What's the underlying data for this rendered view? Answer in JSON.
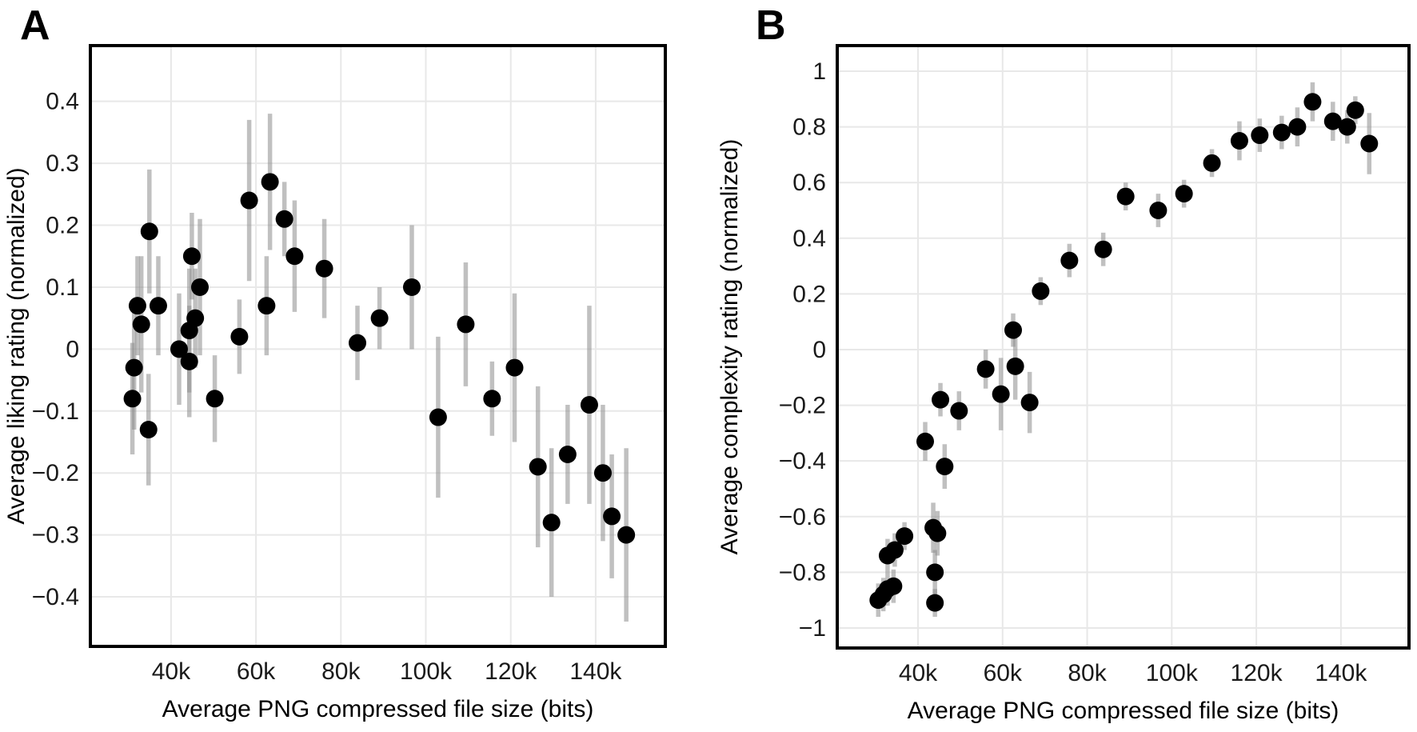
{
  "page": {
    "background": "#ffffff",
    "figure_type": "two-panel scatter plot with error bars"
  },
  "colors": {
    "point": "#000000",
    "error_bar": "#8c8c8c",
    "grid": "#e8e8e8",
    "frame": "#000000",
    "tick_text": "#1a1a1a",
    "title_text": "#000000"
  },
  "chart_data": [
    {
      "type": "scatter",
      "panel_label": "A",
      "xlabel": "Average PNG compressed file size (bits)",
      "ylabel": "Average liking rating (normalized)",
      "grid": true,
      "legend": false,
      "error_bars": true,
      "xlim": [
        21000,
        156400
      ],
      "ylim": [
        -0.48,
        0.49
      ],
      "x_ticks": {
        "values": [
          40000,
          60000,
          80000,
          100000,
          120000,
          140000
        ],
        "labels": [
          "40k",
          "60k",
          "80k",
          "100k",
          "120k",
          "140k"
        ]
      },
      "y_ticks": {
        "values": [
          0.4,
          0.3,
          0.2,
          0.1,
          0,
          -0.1,
          -0.2,
          -0.3,
          -0.4
        ],
        "labels": [
          "0.4",
          "0.3",
          "0.2",
          "0.1",
          "0",
          "−0.1",
          "−0.2",
          "−0.3",
          "−0.4"
        ]
      },
      "points": [
        {
          "x": 30900,
          "y": -0.08,
          "e": 0.09
        },
        {
          "x": 31300,
          "y": -0.03,
          "e": 0.1
        },
        {
          "x": 32100,
          "y": 0.07,
          "e": 0.08
        },
        {
          "x": 33000,
          "y": 0.04,
          "e": 0.11
        },
        {
          "x": 34900,
          "y": 0.19,
          "e": 0.1
        },
        {
          "x": 34700,
          "y": -0.13,
          "e": 0.09
        },
        {
          "x": 37000,
          "y": 0.07,
          "e": 0.08
        },
        {
          "x": 41900,
          "y": 0.0,
          "e": 0.09
        },
        {
          "x": 44300,
          "y": 0.03,
          "e": 0.1
        },
        {
          "x": 44300,
          "y": -0.02,
          "e": 0.09
        },
        {
          "x": 44900,
          "y": 0.15,
          "e": 0.07
        },
        {
          "x": 45700,
          "y": 0.05,
          "e": 0.08
        },
        {
          "x": 46800,
          "y": 0.1,
          "e": 0.11
        },
        {
          "x": 50300,
          "y": -0.08,
          "e": 0.07
        },
        {
          "x": 56100,
          "y": 0.02,
          "e": 0.06
        },
        {
          "x": 58400,
          "y": 0.24,
          "e": 0.13
        },
        {
          "x": 62500,
          "y": 0.07,
          "e": 0.08
        },
        {
          "x": 63300,
          "y": 0.27,
          "e": 0.11
        },
        {
          "x": 66700,
          "y": 0.21,
          "e": 0.06
        },
        {
          "x": 69100,
          "y": 0.15,
          "e": 0.09
        },
        {
          "x": 76100,
          "y": 0.13,
          "e": 0.08
        },
        {
          "x": 83900,
          "y": 0.01,
          "e": 0.06
        },
        {
          "x": 89100,
          "y": 0.05,
          "e": 0.05
        },
        {
          "x": 96700,
          "y": 0.1,
          "e": 0.1
        },
        {
          "x": 102900,
          "y": -0.11,
          "e": 0.13
        },
        {
          "x": 109400,
          "y": 0.04,
          "e": 0.1
        },
        {
          "x": 115600,
          "y": -0.08,
          "e": 0.06
        },
        {
          "x": 120900,
          "y": -0.03,
          "e": 0.12
        },
        {
          "x": 126400,
          "y": -0.19,
          "e": 0.13
        },
        {
          "x": 129600,
          "y": -0.28,
          "e": 0.12
        },
        {
          "x": 133400,
          "y": -0.17,
          "e": 0.08
        },
        {
          "x": 138500,
          "y": -0.09,
          "e": 0.16
        },
        {
          "x": 141700,
          "y": -0.2,
          "e": 0.11
        },
        {
          "x": 143800,
          "y": -0.27,
          "e": 0.1
        },
        {
          "x": 147200,
          "y": -0.3,
          "e": 0.14
        }
      ]
    },
    {
      "type": "scatter",
      "panel_label": "B",
      "xlabel": "Average PNG compressed file size (bits)",
      "ylabel": "Average complexity rating (normalized)",
      "grid": true,
      "legend": false,
      "error_bars": true,
      "xlim": [
        20900,
        156100
      ],
      "ylim": [
        -1.072,
        1.092
      ],
      "x_ticks": {
        "values": [
          40000,
          60000,
          80000,
          100000,
          120000,
          140000
        ],
        "labels": [
          "40k",
          "60k",
          "80k",
          "100k",
          "120k",
          "140k"
        ]
      },
      "y_ticks": {
        "values": [
          1,
          0.8,
          0.6,
          0.4,
          0.2,
          0,
          -0.2,
          -0.4,
          -0.6,
          -0.8,
          -1
        ],
        "labels": [
          "1",
          "0.8",
          "0.6",
          "0.4",
          "0.2",
          "0",
          "−0.2",
          "−0.4",
          "−0.6",
          "−0.8",
          "−1"
        ]
      },
      "points": [
        {
          "x": 30600,
          "y": -0.9,
          "e": 0.06
        },
        {
          "x": 31800,
          "y": -0.88,
          "e": 0.06
        },
        {
          "x": 32800,
          "y": -0.86,
          "e": 0.06
        },
        {
          "x": 34200,
          "y": -0.85,
          "e": 0.06
        },
        {
          "x": 32800,
          "y": -0.74,
          "e": 0.06
        },
        {
          "x": 34500,
          "y": -0.72,
          "e": 0.06
        },
        {
          "x": 36800,
          "y": -0.67,
          "e": 0.05
        },
        {
          "x": 41700,
          "y": -0.33,
          "e": 0.07
        },
        {
          "x": 43600,
          "y": -0.64,
          "e": 0.09
        },
        {
          "x": 44600,
          "y": -0.66,
          "e": 0.08
        },
        {
          "x": 44000,
          "y": -0.8,
          "e": 0.08
        },
        {
          "x": 44000,
          "y": -0.91,
          "e": 0.05
        },
        {
          "x": 45300,
          "y": -0.18,
          "e": 0.06
        },
        {
          "x": 46300,
          "y": -0.42,
          "e": 0.08
        },
        {
          "x": 49700,
          "y": -0.22,
          "e": 0.07
        },
        {
          "x": 56000,
          "y": -0.07,
          "e": 0.07
        },
        {
          "x": 59600,
          "y": -0.16,
          "e": 0.13
        },
        {
          "x": 62500,
          "y": 0.07,
          "e": 0.06
        },
        {
          "x": 63000,
          "y": -0.06,
          "e": 0.12
        },
        {
          "x": 66400,
          "y": -0.19,
          "e": 0.11
        },
        {
          "x": 69000,
          "y": 0.21,
          "e": 0.05
        },
        {
          "x": 75800,
          "y": 0.32,
          "e": 0.06
        },
        {
          "x": 83800,
          "y": 0.36,
          "e": 0.06
        },
        {
          "x": 89100,
          "y": 0.55,
          "e": 0.05
        },
        {
          "x": 96800,
          "y": 0.5,
          "e": 0.06
        },
        {
          "x": 102900,
          "y": 0.56,
          "e": 0.05
        },
        {
          "x": 109500,
          "y": 0.67,
          "e": 0.05
        },
        {
          "x": 116000,
          "y": 0.75,
          "e": 0.07
        },
        {
          "x": 120800,
          "y": 0.77,
          "e": 0.06
        },
        {
          "x": 126000,
          "y": 0.78,
          "e": 0.06
        },
        {
          "x": 129700,
          "y": 0.8,
          "e": 0.07
        },
        {
          "x": 133300,
          "y": 0.89,
          "e": 0.07
        },
        {
          "x": 138100,
          "y": 0.82,
          "e": 0.07
        },
        {
          "x": 141500,
          "y": 0.8,
          "e": 0.06
        },
        {
          "x": 143400,
          "y": 0.86,
          "e": 0.05
        },
        {
          "x": 146700,
          "y": 0.74,
          "e": 0.11
        }
      ]
    }
  ]
}
